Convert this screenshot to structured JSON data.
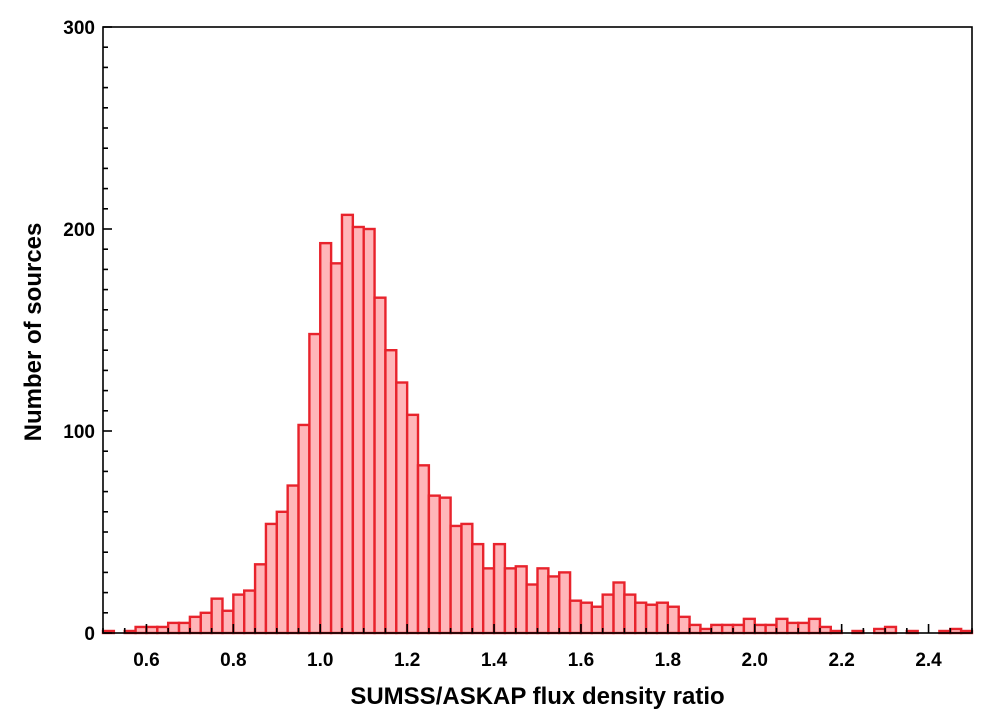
{
  "chart_data": {
    "type": "bar",
    "title": "",
    "xlabel": "SUMSS/ASKAP flux density ratio",
    "ylabel": "Number of sources",
    "xlim": [
      0.5,
      2.5
    ],
    "ylim": [
      0,
      300
    ],
    "bin_width": 0.025,
    "x_ticks": [
      "0.6",
      "0.8",
      "1.0",
      "1.2",
      "1.4",
      "1.6",
      "1.8",
      "2.0",
      "2.2",
      "2.4"
    ],
    "y_ticks": [
      "0",
      "100",
      "200",
      "300"
    ],
    "grid": false,
    "legend": "none",
    "colors": {
      "bar_fill": "#ffb6b9",
      "bar_edge": "#e8232c",
      "axis": "#000000"
    },
    "bins_start": [
      0.5,
      0.525,
      0.55,
      0.575,
      0.6,
      0.625,
      0.65,
      0.675,
      0.7,
      0.725,
      0.75,
      0.775,
      0.8,
      0.825,
      0.85,
      0.875,
      0.9,
      0.925,
      0.95,
      0.975,
      1.0,
      1.025,
      1.05,
      1.075,
      1.1,
      1.125,
      1.15,
      1.175,
      1.2,
      1.225,
      1.25,
      1.275,
      1.3,
      1.325,
      1.35,
      1.375,
      1.4,
      1.425,
      1.45,
      1.475,
      1.5,
      1.525,
      1.55,
      1.575,
      1.6,
      1.625,
      1.65,
      1.675,
      1.7,
      1.725,
      1.75,
      1.775,
      1.8,
      1.825,
      1.85,
      1.875,
      1.9,
      1.925,
      1.95,
      1.975,
      2.0,
      2.025,
      2.05,
      2.075,
      2.1,
      2.125,
      2.15,
      2.175,
      2.2,
      2.225,
      2.25,
      2.275,
      2.3,
      2.325,
      2.35,
      2.375,
      2.4,
      2.425,
      2.45,
      2.475
    ],
    "values": [
      1,
      0,
      1,
      3,
      3,
      3,
      5,
      5,
      8,
      10,
      17,
      11,
      19,
      21,
      34,
      54,
      60,
      73,
      103,
      148,
      193,
      183,
      207,
      201,
      200,
      166,
      140,
      124,
      108,
      83,
      68,
      67,
      53,
      54,
      44,
      32,
      44,
      32,
      33,
      24,
      32,
      28,
      30,
      16,
      15,
      13,
      19,
      25,
      19,
      15,
      14,
      15,
      13,
      8,
      4,
      2,
      4,
      4,
      4,
      7,
      4,
      4,
      7,
      5,
      5,
      7,
      3,
      1,
      0,
      1,
      0,
      2,
      3,
      0,
      1,
      0,
      0,
      1,
      2,
      1
    ]
  }
}
